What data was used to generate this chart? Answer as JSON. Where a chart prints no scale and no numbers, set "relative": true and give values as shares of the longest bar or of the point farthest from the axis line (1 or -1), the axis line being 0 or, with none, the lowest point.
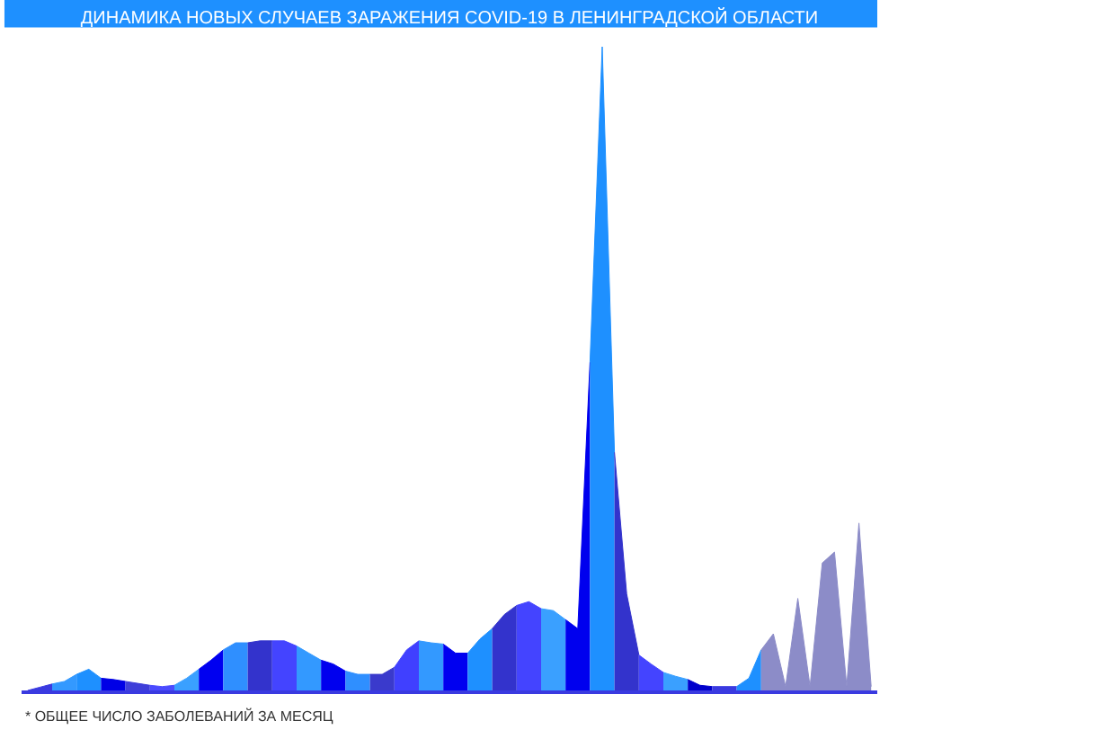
{
  "chart_data": {
    "type": "area",
    "relative": true,
    "tick_labels": false,
    "title": "ДИНАМИКА НОВЫХ СЛУЧАЕВ ЗАРАЖЕНИЯ COVID-19 В ЛЕНИНГРАДСКОЙ ОБЛАСТИ",
    "annotations": [
      "* ОБЩЕЕ ЧИСЛО ЗАБОЛЕВАНИЙ ЗА МЕСЯЦ"
    ],
    "categories": [
      null,
      null,
      null,
      null,
      null,
      null,
      null,
      null,
      null,
      null,
      null,
      null,
      null,
      null,
      null,
      null,
      null,
      null,
      null,
      null,
      null,
      null,
      null,
      null,
      null,
      null,
      null,
      null,
      null,
      null,
      null,
      null,
      null,
      null,
      null,
      null,
      null,
      null,
      null,
      null,
      null,
      null,
      null,
      null,
      null,
      null,
      null,
      null,
      null,
      null,
      null,
      null,
      null,
      null,
      null,
      null,
      null,
      null,
      null,
      null,
      null,
      null,
      null,
      null,
      null,
      null,
      null,
      null,
      null,
      null
    ],
    "series": [
      {
        "color": "#3a3ae0",
        "values": [
          0.0,
          0.005,
          0.01,
          null,
          null,
          null,
          null,
          null,
          null,
          null,
          null,
          null,
          null,
          null,
          null,
          null,
          null,
          null,
          null,
          null,
          null,
          null,
          null,
          null,
          null,
          null,
          null,
          null,
          null,
          null,
          null,
          null,
          null,
          null,
          null,
          null,
          null,
          null,
          null,
          null,
          null,
          null,
          null,
          null,
          null,
          null,
          null,
          null,
          null,
          null,
          null,
          null,
          null,
          null,
          null,
          null,
          null,
          null,
          null,
          null,
          null,
          null,
          null,
          null,
          null,
          null,
          null,
          null,
          null,
          null
        ]
      },
      {
        "color": "#3399ff",
        "values": [
          null,
          null,
          0.01,
          0.014,
          0.025,
          null,
          null,
          null,
          null,
          null,
          null,
          null,
          null,
          null,
          null,
          null,
          null,
          null,
          null,
          null,
          null,
          null,
          null,
          null,
          null,
          null,
          null,
          null,
          null,
          null,
          null,
          null,
          null,
          null,
          null,
          null,
          null,
          null,
          null,
          null,
          null,
          null,
          null,
          null,
          null,
          null,
          null,
          null,
          null,
          null,
          null,
          null,
          null,
          null,
          null,
          null,
          null,
          null,
          null,
          null,
          null,
          null,
          null,
          null,
          null,
          null,
          null,
          null,
          null,
          null
        ]
      },
      {
        "color": "#1e90ff",
        "values": [
          null,
          null,
          null,
          null,
          0.025,
          0.033,
          0.019,
          null,
          null,
          null,
          null,
          null,
          null,
          null,
          null,
          null,
          null,
          null,
          null,
          null,
          null,
          null,
          null,
          null,
          null,
          null,
          null,
          null,
          null,
          null,
          null,
          null,
          null,
          null,
          null,
          null,
          null,
          null,
          null,
          null,
          null,
          null,
          null,
          null,
          null,
          null,
          null,
          null,
          null,
          null,
          null,
          null,
          null,
          null,
          null,
          null,
          null,
          null,
          null,
          null,
          null,
          null,
          null,
          null,
          null,
          null,
          null,
          null,
          null,
          null
        ]
      },
      {
        "color": "#0000e6",
        "values": [
          null,
          null,
          null,
          null,
          null,
          null,
          0.019,
          0.017,
          0.014,
          null,
          null,
          null,
          null,
          null,
          null,
          null,
          null,
          null,
          null,
          null,
          null,
          null,
          null,
          null,
          null,
          null,
          null,
          null,
          null,
          null,
          null,
          null,
          null,
          null,
          null,
          null,
          null,
          null,
          null,
          null,
          null,
          null,
          null,
          null,
          null,
          null,
          null,
          null,
          null,
          null,
          null,
          null,
          null,
          null,
          null,
          null,
          null,
          null,
          null,
          null,
          null,
          null,
          null,
          null,
          null,
          null,
          null,
          null,
          null,
          null
        ]
      },
      {
        "color": "#3f3fd9",
        "values": [
          null,
          null,
          null,
          null,
          null,
          null,
          null,
          null,
          0.014,
          0.011,
          0.008,
          null,
          null,
          null,
          null,
          null,
          null,
          null,
          null,
          null,
          null,
          null,
          null,
          null,
          null,
          null,
          null,
          null,
          null,
          null,
          null,
          null,
          null,
          null,
          null,
          null,
          null,
          null,
          null,
          null,
          null,
          null,
          null,
          null,
          null,
          null,
          null,
          null,
          null,
          null,
          null,
          null,
          null,
          null,
          null,
          null,
          null,
          null,
          null,
          null,
          null,
          null,
          null,
          null,
          null,
          null,
          null,
          null,
          null,
          null
        ]
      },
      {
        "color": "#4b4bff",
        "values": [
          null,
          null,
          null,
          null,
          null,
          null,
          null,
          null,
          null,
          null,
          0.008,
          0.006,
          0.008,
          null,
          null,
          null,
          null,
          null,
          null,
          null,
          null,
          null,
          null,
          null,
          null,
          null,
          null,
          null,
          null,
          null,
          null,
          null,
          null,
          null,
          null,
          null,
          null,
          null,
          null,
          null,
          null,
          null,
          null,
          null,
          null,
          null,
          null,
          null,
          null,
          null,
          null,
          null,
          null,
          null,
          null,
          null,
          null,
          null,
          null,
          null,
          null,
          null,
          null,
          null,
          null,
          null,
          null,
          null,
          null,
          null
        ]
      },
      {
        "color": "#3aa0ff",
        "values": [
          null,
          null,
          null,
          null,
          null,
          null,
          null,
          null,
          null,
          null,
          null,
          null,
          0.008,
          0.019,
          0.033,
          null,
          null,
          null,
          null,
          null,
          null,
          null,
          null,
          null,
          null,
          null,
          null,
          null,
          null,
          null,
          null,
          null,
          null,
          null,
          null,
          null,
          null,
          null,
          null,
          null,
          null,
          null,
          null,
          null,
          null,
          null,
          null,
          null,
          null,
          null,
          null,
          null,
          null,
          null,
          null,
          null,
          null,
          null,
          null,
          null,
          null,
          null,
          null,
          null,
          null,
          null,
          null,
          null,
          null,
          null
        ]
      },
      {
        "color": "#0000f0",
        "values": [
          null,
          null,
          null,
          null,
          null,
          null,
          null,
          null,
          null,
          null,
          null,
          null,
          null,
          null,
          0.033,
          0.047,
          0.063,
          null,
          null,
          null,
          null,
          null,
          null,
          null,
          null,
          null,
          null,
          null,
          null,
          null,
          null,
          null,
          null,
          null,
          null,
          null,
          null,
          null,
          null,
          null,
          null,
          null,
          null,
          null,
          null,
          null,
          null,
          null,
          null,
          null,
          null,
          null,
          null,
          null,
          null,
          null,
          null,
          null,
          null,
          null,
          null,
          null,
          null,
          null,
          null,
          null,
          null,
          null,
          null,
          null
        ]
      },
      {
        "color": "#2f8fff",
        "values": [
          null,
          null,
          null,
          null,
          null,
          null,
          null,
          null,
          null,
          null,
          null,
          null,
          null,
          null,
          null,
          null,
          0.063,
          0.074,
          0.074,
          null,
          null,
          null,
          null,
          null,
          null,
          null,
          null,
          null,
          null,
          null,
          null,
          null,
          null,
          null,
          null,
          null,
          null,
          null,
          null,
          null,
          null,
          null,
          null,
          null,
          null,
          null,
          null,
          null,
          null,
          null,
          null,
          null,
          null,
          null,
          null,
          null,
          null,
          null,
          null,
          null,
          null,
          null,
          null,
          null,
          null,
          null,
          null,
          null,
          null,
          null
        ]
      },
      {
        "color": "#3333cc",
        "values": [
          null,
          null,
          null,
          null,
          null,
          null,
          null,
          null,
          null,
          null,
          null,
          null,
          null,
          null,
          null,
          null,
          null,
          null,
          0.074,
          0.077,
          0.077,
          null,
          null,
          null,
          null,
          null,
          null,
          null,
          null,
          null,
          null,
          null,
          null,
          null,
          null,
          null,
          null,
          null,
          null,
          null,
          null,
          null,
          null,
          null,
          null,
          null,
          null,
          null,
          null,
          null,
          null,
          null,
          null,
          null,
          null,
          null,
          null,
          null,
          null,
          null,
          null,
          null,
          null,
          null,
          null,
          null,
          null,
          null,
          null,
          null
        ]
      },
      {
        "color": "#4444ff",
        "values": [
          null,
          null,
          null,
          null,
          null,
          null,
          null,
          null,
          null,
          null,
          null,
          null,
          null,
          null,
          null,
          null,
          null,
          null,
          null,
          null,
          0.077,
          0.077,
          0.069,
          null,
          null,
          null,
          null,
          null,
          null,
          null,
          null,
          null,
          null,
          null,
          null,
          null,
          null,
          null,
          null,
          null,
          null,
          null,
          null,
          null,
          null,
          null,
          null,
          null,
          null,
          null,
          null,
          null,
          null,
          null,
          null,
          null,
          null,
          null,
          null,
          null,
          null,
          null,
          null,
          null,
          null,
          null,
          null,
          null,
          null,
          null
        ]
      },
      {
        "color": "#3399ff",
        "values": [
          null,
          null,
          null,
          null,
          null,
          null,
          null,
          null,
          null,
          null,
          null,
          null,
          null,
          null,
          null,
          null,
          null,
          null,
          null,
          null,
          null,
          null,
          0.069,
          0.058,
          0.047,
          null,
          null,
          null,
          null,
          null,
          null,
          null,
          null,
          null,
          null,
          null,
          null,
          null,
          null,
          null,
          null,
          null,
          null,
          null,
          null,
          null,
          null,
          null,
          null,
          null,
          null,
          null,
          null,
          null,
          null,
          null,
          null,
          null,
          null,
          null,
          null,
          null,
          null,
          null,
          null,
          null,
          null,
          null,
          null,
          null
        ]
      },
      {
        "color": "#0000ee",
        "values": [
          null,
          null,
          null,
          null,
          null,
          null,
          null,
          null,
          null,
          null,
          null,
          null,
          null,
          null,
          null,
          null,
          null,
          null,
          null,
          null,
          null,
          null,
          null,
          null,
          0.047,
          0.041,
          0.03,
          null,
          null,
          null,
          null,
          null,
          null,
          null,
          null,
          null,
          null,
          null,
          null,
          null,
          null,
          null,
          null,
          null,
          null,
          null,
          null,
          null,
          null,
          null,
          null,
          null,
          null,
          null,
          null,
          null,
          null,
          null,
          null,
          null,
          null,
          null,
          null,
          null,
          null,
          null,
          null,
          null,
          null,
          null
        ]
      },
      {
        "color": "#2f8fff",
        "values": [
          null,
          null,
          null,
          null,
          null,
          null,
          null,
          null,
          null,
          null,
          null,
          null,
          null,
          null,
          null,
          null,
          null,
          null,
          null,
          null,
          null,
          null,
          null,
          null,
          null,
          null,
          0.03,
          0.025,
          0.025,
          null,
          null,
          null,
          null,
          null,
          null,
          null,
          null,
          null,
          null,
          null,
          null,
          null,
          null,
          null,
          null,
          null,
          null,
          null,
          null,
          null,
          null,
          null,
          null,
          null,
          null,
          null,
          null,
          null,
          null,
          null,
          null,
          null,
          null,
          null,
          null,
          null,
          null,
          null,
          null,
          null
        ]
      },
      {
        "color": "#3a3acc",
        "values": [
          null,
          null,
          null,
          null,
          null,
          null,
          null,
          null,
          null,
          null,
          null,
          null,
          null,
          null,
          null,
          null,
          null,
          null,
          null,
          null,
          null,
          null,
          null,
          null,
          null,
          null,
          null,
          null,
          0.025,
          0.025,
          0.036,
          null,
          null,
          null,
          null,
          null,
          null,
          null,
          null,
          null,
          null,
          null,
          null,
          null,
          null,
          null,
          null,
          null,
          null,
          null,
          null,
          null,
          null,
          null,
          null,
          null,
          null,
          null,
          null,
          null,
          null,
          null,
          null,
          null,
          null,
          null,
          null,
          null,
          null,
          null
        ]
      },
      {
        "color": "#4040ff",
        "values": [
          null,
          null,
          null,
          null,
          null,
          null,
          null,
          null,
          null,
          null,
          null,
          null,
          null,
          null,
          null,
          null,
          null,
          null,
          null,
          null,
          null,
          null,
          null,
          null,
          null,
          null,
          null,
          null,
          null,
          null,
          0.036,
          0.063,
          0.077,
          null,
          null,
          null,
          null,
          null,
          null,
          null,
          null,
          null,
          null,
          null,
          null,
          null,
          null,
          null,
          null,
          null,
          null,
          null,
          null,
          null,
          null,
          null,
          null,
          null,
          null,
          null,
          null,
          null,
          null,
          null,
          null,
          null,
          null,
          null,
          null,
          null
        ]
      },
      {
        "color": "#3399ff",
        "values": [
          null,
          null,
          null,
          null,
          null,
          null,
          null,
          null,
          null,
          null,
          null,
          null,
          null,
          null,
          null,
          null,
          null,
          null,
          null,
          null,
          null,
          null,
          null,
          null,
          null,
          null,
          null,
          null,
          null,
          null,
          null,
          null,
          0.077,
          0.074,
          0.072,
          null,
          null,
          null,
          null,
          null,
          null,
          null,
          null,
          null,
          null,
          null,
          null,
          null,
          null,
          null,
          null,
          null,
          null,
          null,
          null,
          null,
          null,
          null,
          null,
          null,
          null,
          null,
          null,
          null,
          null,
          null,
          null,
          null,
          null,
          null
        ]
      },
      {
        "color": "#0000f0",
        "values": [
          null,
          null,
          null,
          null,
          null,
          null,
          null,
          null,
          null,
          null,
          null,
          null,
          null,
          null,
          null,
          null,
          null,
          null,
          null,
          null,
          null,
          null,
          null,
          null,
          null,
          null,
          null,
          null,
          null,
          null,
          null,
          null,
          null,
          null,
          0.072,
          0.058,
          0.058,
          null,
          null,
          null,
          null,
          null,
          null,
          null,
          null,
          null,
          null,
          null,
          null,
          null,
          null,
          null,
          null,
          null,
          null,
          null,
          null,
          null,
          null,
          null,
          null,
          null,
          null,
          null,
          null,
          null,
          null,
          null,
          null,
          null
        ]
      },
      {
        "color": "#1e90ff",
        "values": [
          null,
          null,
          null,
          null,
          null,
          null,
          null,
          null,
          null,
          null,
          null,
          null,
          null,
          null,
          null,
          null,
          null,
          null,
          null,
          null,
          null,
          null,
          null,
          null,
          null,
          null,
          null,
          null,
          null,
          null,
          null,
          null,
          null,
          null,
          null,
          null,
          0.058,
          0.08,
          0.096,
          null,
          null,
          null,
          null,
          null,
          null,
          null,
          null,
          null,
          null,
          null,
          null,
          null,
          null,
          null,
          null,
          null,
          null,
          null,
          null,
          null,
          null,
          null,
          null,
          null,
          null,
          null,
          null,
          null,
          null,
          null
        ]
      },
      {
        "color": "#3333cc",
        "values": [
          null,
          null,
          null,
          null,
          null,
          null,
          null,
          null,
          null,
          null,
          null,
          null,
          null,
          null,
          null,
          null,
          null,
          null,
          null,
          null,
          null,
          null,
          null,
          null,
          null,
          null,
          null,
          null,
          null,
          null,
          null,
          null,
          null,
          null,
          null,
          null,
          null,
          null,
          0.096,
          0.118,
          0.132,
          null,
          null,
          null,
          null,
          null,
          null,
          null,
          null,
          null,
          null,
          null,
          null,
          null,
          null,
          null,
          null,
          null,
          null,
          null,
          null,
          null,
          null,
          null,
          null,
          null,
          null,
          null,
          null,
          null
        ]
      },
      {
        "color": "#4444ff",
        "values": [
          null,
          null,
          null,
          null,
          null,
          null,
          null,
          null,
          null,
          null,
          null,
          null,
          null,
          null,
          null,
          null,
          null,
          null,
          null,
          null,
          null,
          null,
          null,
          null,
          null,
          null,
          null,
          null,
          null,
          null,
          null,
          null,
          null,
          null,
          null,
          null,
          null,
          null,
          null,
          null,
          0.132,
          0.138,
          0.127,
          null,
          null,
          null,
          null,
          null,
          null,
          null,
          null,
          null,
          null,
          null,
          null,
          null,
          null,
          null,
          null,
          null,
          null,
          null,
          null,
          null,
          null,
          null,
          null,
          null,
          null,
          null
        ]
      },
      {
        "color": "#3aa0ff",
        "values": [
          null,
          null,
          null,
          null,
          null,
          null,
          null,
          null,
          null,
          null,
          null,
          null,
          null,
          null,
          null,
          null,
          null,
          null,
          null,
          null,
          null,
          null,
          null,
          null,
          null,
          null,
          null,
          null,
          null,
          null,
          null,
          null,
          null,
          null,
          null,
          null,
          null,
          null,
          null,
          null,
          null,
          null,
          0.127,
          0.124,
          0.11,
          null,
          null,
          null,
          null,
          null,
          null,
          null,
          null,
          null,
          null,
          null,
          null,
          null,
          null,
          null,
          null,
          null,
          null,
          null,
          null,
          null,
          null,
          null,
          null,
          null
        ]
      },
      {
        "color": "#0000ee",
        "values": [
          null,
          null,
          null,
          null,
          null,
          null,
          null,
          null,
          null,
          null,
          null,
          null,
          null,
          null,
          null,
          null,
          null,
          null,
          null,
          null,
          null,
          null,
          null,
          null,
          null,
          null,
          null,
          null,
          null,
          null,
          null,
          null,
          null,
          null,
          null,
          null,
          null,
          null,
          null,
          null,
          null,
          null,
          null,
          null,
          0.11,
          0.096,
          0.51,
          null,
          null,
          null,
          null,
          null,
          null,
          null,
          null,
          null,
          null,
          null,
          null,
          null,
          null,
          null,
          null,
          null,
          null,
          null,
          null,
          null,
          null,
          null
        ]
      },
      {
        "color": "#1e90ff",
        "values": [
          null,
          null,
          null,
          null,
          null,
          null,
          null,
          null,
          null,
          null,
          null,
          null,
          null,
          null,
          null,
          null,
          null,
          null,
          null,
          null,
          null,
          null,
          null,
          null,
          null,
          null,
          null,
          null,
          null,
          null,
          null,
          null,
          null,
          null,
          null,
          null,
          null,
          null,
          null,
          null,
          null,
          null,
          null,
          null,
          null,
          null,
          0.51,
          1.0,
          0.37,
          null,
          null,
          null,
          null,
          null,
          null,
          null,
          null,
          null,
          null,
          null,
          null,
          null,
          null,
          null,
          null,
          null,
          null,
          null,
          null,
          null
        ]
      },
      {
        "color": "#3333cc",
        "values": [
          null,
          null,
          null,
          null,
          null,
          null,
          null,
          null,
          null,
          null,
          null,
          null,
          null,
          null,
          null,
          null,
          null,
          null,
          null,
          null,
          null,
          null,
          null,
          null,
          null,
          null,
          null,
          null,
          null,
          null,
          null,
          null,
          null,
          null,
          null,
          null,
          null,
          null,
          null,
          null,
          null,
          null,
          null,
          null,
          null,
          null,
          null,
          null,
          0.37,
          0.15,
          0.055,
          null,
          null,
          null,
          null,
          null,
          null,
          null,
          null,
          null,
          null,
          null,
          null,
          null,
          null,
          null,
          null,
          null,
          null,
          null
        ]
      },
      {
        "color": "#4444ff",
        "values": [
          null,
          null,
          null,
          null,
          null,
          null,
          null,
          null,
          null,
          null,
          null,
          null,
          null,
          null,
          null,
          null,
          null,
          null,
          null,
          null,
          null,
          null,
          null,
          null,
          null,
          null,
          null,
          null,
          null,
          null,
          null,
          null,
          null,
          null,
          null,
          null,
          null,
          null,
          null,
          null,
          null,
          null,
          null,
          null,
          null,
          null,
          null,
          null,
          null,
          null,
          0.055,
          0.041,
          0.028,
          null,
          null,
          null,
          null,
          null,
          null,
          null,
          null,
          null,
          null,
          null,
          null,
          null,
          null,
          null,
          null,
          null
        ]
      },
      {
        "color": "#3aa0ff",
        "values": [
          null,
          null,
          null,
          null,
          null,
          null,
          null,
          null,
          null,
          null,
          null,
          null,
          null,
          null,
          null,
          null,
          null,
          null,
          null,
          null,
          null,
          null,
          null,
          null,
          null,
          null,
          null,
          null,
          null,
          null,
          null,
          null,
          null,
          null,
          null,
          null,
          null,
          null,
          null,
          null,
          null,
          null,
          null,
          null,
          null,
          null,
          null,
          null,
          null,
          null,
          null,
          null,
          0.028,
          0.022,
          0.017,
          null,
          null,
          null,
          null,
          null,
          null,
          null,
          null,
          null,
          null,
          null,
          null,
          null,
          null,
          null
        ]
      },
      {
        "color": "#0000cc",
        "values": [
          null,
          null,
          null,
          null,
          null,
          null,
          null,
          null,
          null,
          null,
          null,
          null,
          null,
          null,
          null,
          null,
          null,
          null,
          null,
          null,
          null,
          null,
          null,
          null,
          null,
          null,
          null,
          null,
          null,
          null,
          null,
          null,
          null,
          null,
          null,
          null,
          null,
          null,
          null,
          null,
          null,
          null,
          null,
          null,
          null,
          null,
          null,
          null,
          null,
          null,
          null,
          null,
          null,
          null,
          0.017,
          0.008,
          0.006,
          null,
          null,
          null,
          null,
          null,
          null,
          null,
          null,
          null,
          null,
          null,
          null,
          null
        ]
      },
      {
        "color": "#3a3ae0",
        "values": [
          null,
          null,
          null,
          null,
          null,
          null,
          null,
          null,
          null,
          null,
          null,
          null,
          null,
          null,
          null,
          null,
          null,
          null,
          null,
          null,
          null,
          null,
          null,
          null,
          null,
          null,
          null,
          null,
          null,
          null,
          null,
          null,
          null,
          null,
          null,
          null,
          null,
          null,
          null,
          null,
          null,
          null,
          null,
          null,
          null,
          null,
          null,
          null,
          null,
          null,
          null,
          null,
          null,
          null,
          null,
          null,
          0.006,
          0.006,
          0.006,
          null,
          null,
          null,
          null,
          null,
          null,
          null,
          null,
          null,
          null,
          null
        ]
      },
      {
        "color": "#1e90ff",
        "values": [
          null,
          null,
          null,
          null,
          null,
          null,
          null,
          null,
          null,
          null,
          null,
          null,
          null,
          null,
          null,
          null,
          null,
          null,
          null,
          null,
          null,
          null,
          null,
          null,
          null,
          null,
          null,
          null,
          null,
          null,
          null,
          null,
          null,
          null,
          null,
          null,
          null,
          null,
          null,
          null,
          null,
          null,
          null,
          null,
          null,
          null,
          null,
          null,
          null,
          null,
          null,
          null,
          null,
          null,
          null,
          null,
          null,
          null,
          0.006,
          0.019,
          0.063,
          null,
          null,
          null,
          null,
          null,
          null,
          null,
          null,
          null
        ]
      },
      {
        "color": "#8c8cc8",
        "values": [
          null,
          null,
          null,
          null,
          null,
          null,
          null,
          null,
          null,
          null,
          null,
          null,
          null,
          null,
          null,
          null,
          null,
          null,
          null,
          null,
          null,
          null,
          null,
          null,
          null,
          null,
          null,
          null,
          null,
          null,
          null,
          null,
          null,
          null,
          null,
          null,
          null,
          null,
          null,
          null,
          null,
          null,
          null,
          null,
          null,
          null,
          null,
          null,
          null,
          null,
          null,
          null,
          null,
          null,
          null,
          null,
          null,
          null,
          null,
          null,
          0.063,
          0.088,
          0.006,
          0.143,
          0.006,
          0.198,
          0.215,
          0.006,
          0.26,
          0.006
        ]
      }
    ]
  }
}
